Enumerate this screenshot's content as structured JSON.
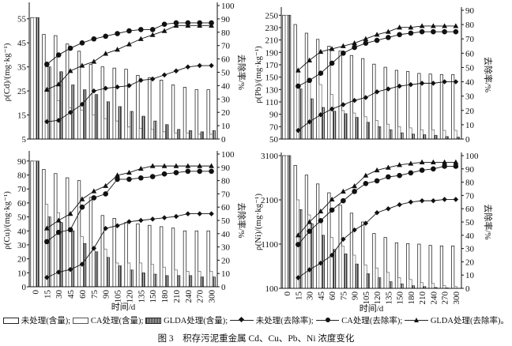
{
  "chart_data": [
    {
      "type": "bar+line",
      "metal": "Cd",
      "ylabel": "ρ(Cd)/(mg·kg⁻¹)",
      "y2label": "去除率/%",
      "xlabel": "",
      "categories": [
        "0",
        "15",
        "30",
        "45",
        "60",
        "75",
        "90",
        "105",
        "120",
        "135",
        "150",
        "180",
        "210",
        "240",
        "270",
        "300"
      ],
      "ylim": [
        5,
        60.5
      ],
      "yticks": [
        5,
        15,
        25,
        35,
        45,
        55
      ],
      "y2lim": [
        0,
        100
      ],
      "y2ticks": [
        0,
        10,
        20,
        30,
        40,
        50,
        60,
        70,
        80,
        90,
        100
      ],
      "bars": [
        {
          "name": "未处理(含量)",
          "values": [
            55.5,
            48.5,
            48,
            44.5,
            41.5,
            36,
            35,
            34.5,
            34,
            31.5,
            30.5,
            29.5,
            27.5,
            26.5,
            25.5,
            25.5
          ]
        },
        {
          "name": "CA处理(含量)",
          "values": [
            55.5,
            35,
            21,
            18,
            17,
            15,
            13.5,
            12.5,
            10,
            9.5,
            9,
            8,
            7.5,
            7.5,
            7,
            7
          ]
        },
        {
          "name": "GLDA处理(含量)",
          "values": [
            55.5,
            35,
            33,
            27.5,
            25.5,
            23.5,
            20.5,
            18.5,
            16.5,
            14.5,
            12.5,
            11,
            9,
            8.5,
            8,
            8.5
          ]
        }
      ],
      "lines": [
        {
          "name": "未处理(去除率)",
          "marker": "diamond",
          "values": [
            null,
            13,
            14,
            20,
            26,
            36,
            38,
            39,
            40,
            44,
            45,
            48,
            51,
            54,
            55,
            55
          ]
        },
        {
          "name": "CA处理(去除率)",
          "marker": "circle",
          "values": [
            null,
            56,
            63,
            68,
            72,
            75,
            77,
            79,
            81,
            82,
            82,
            86,
            87,
            87,
            87,
            87
          ]
        },
        {
          "name": "GLDA处理(去除率)",
          "marker": "triangle",
          "values": [
            null,
            37,
            41,
            51,
            55,
            58,
            64,
            67,
            71,
            75,
            78,
            81,
            85,
            85,
            85,
            85
          ]
        }
      ]
    },
    {
      "type": "bar+line",
      "metal": "Pb",
      "ylabel": "ρ(Pb)/(mg·kg⁻¹)",
      "y2label": "去除率/%",
      "xlabel": "",
      "categories": [
        "0",
        "15",
        "30",
        "45",
        "60",
        "75",
        "90",
        "105",
        "120",
        "135",
        "150",
        "180",
        "210",
        "240",
        "270",
        "300"
      ],
      "ylim": [
        50,
        258
      ],
      "yticks": [
        50,
        70,
        90,
        110,
        130,
        150,
        170,
        190,
        210,
        230,
        250
      ],
      "y2lim": [
        0,
        90
      ],
      "y2ticks": [
        0,
        10,
        20,
        30,
        40,
        50,
        60,
        70,
        80,
        90
      ],
      "bars": [
        {
          "name": "未处理(含量)",
          "values": [
            250,
            235,
            221,
            211,
            200,
            192,
            185,
            180,
            171,
            166,
            161,
            159,
            156,
            155,
            154,
            154
          ]
        },
        {
          "name": "CA处理(含量)",
          "values": [
            250,
            158,
            148,
            138,
            122,
            96,
            92,
            86,
            80,
            74,
            70,
            68,
            65,
            65,
            64,
            64
          ]
        },
        {
          "name": "GLDA处理(含量)",
          "values": [
            250,
            131,
            115,
            101,
            95,
            91,
            85,
            77,
            70,
            65,
            60,
            58,
            57,
            56,
            54,
            53
          ]
        }
      ],
      "lines": [
        {
          "name": "未处理(去除率)",
          "marker": "diamond",
          "values": [
            null,
            6,
            12,
            17,
            21,
            24,
            27,
            29,
            33,
            35,
            37,
            38,
            39,
            39,
            40,
            40
          ]
        },
        {
          "name": "CA处理(去除率)",
          "marker": "circle",
          "values": [
            null,
            37,
            41,
            46,
            53,
            60,
            64,
            67,
            69,
            71,
            73,
            74,
            75,
            75,
            75,
            75
          ]
        },
        {
          "name": "GLDA处理(去除率)",
          "marker": "triangle",
          "values": [
            null,
            48,
            55,
            61,
            63,
            65,
            67,
            70,
            73,
            75,
            78,
            78,
            79,
            79,
            79,
            79
          ]
        }
      ]
    },
    {
      "type": "bar+line",
      "metal": "Cu",
      "ylabel": "ρ(Cu)/(mg·kg⁻¹)",
      "y2label": "去除率/%",
      "xlabel": "时间/d",
      "categories": [
        "0",
        "15",
        "30",
        "45",
        "60",
        "75",
        "90",
        "105",
        "120",
        "135",
        "150",
        "180",
        "210",
        "240",
        "270",
        "300"
      ],
      "ylim": [
        0,
        95
      ],
      "yticks": [
        0,
        10,
        20,
        30,
        40,
        50,
        60,
        70,
        80,
        90
      ],
      "y2lim": [
        0,
        100
      ],
      "y2ticks": [
        0,
        10,
        20,
        30,
        40,
        50,
        60,
        70,
        80,
        90,
        100
      ],
      "bars": [
        {
          "name": "未处理(含量)",
          "values": [
            90,
            84,
            81,
            78,
            76,
            64,
            51,
            49,
            46,
            45,
            44,
            43,
            42,
            40,
            40,
            40
          ]
        },
        {
          "name": "CA处理(含量)",
          "values": [
            90,
            59,
            53,
            40,
            36,
            26,
            27,
            17,
            17,
            17,
            16,
            14,
            12,
            11,
            11,
            11
          ]
        },
        {
          "name": "GLDA处理(含量)",
          "values": [
            90,
            50,
            46,
            40,
            31,
            25,
            21,
            15,
            12,
            10,
            9,
            8,
            8,
            8,
            7,
            7
          ]
        }
      ],
      "lines": [
        {
          "name": "未处理(去除率)",
          "marker": "diamond",
          "values": [
            null,
            7,
            11,
            13,
            17,
            29,
            44,
            46,
            49,
            50,
            51,
            52,
            53,
            55,
            55,
            55
          ]
        },
        {
          "name": "CA处理(去除率)",
          "marker": "circle",
          "values": [
            null,
            34,
            41,
            43,
            60,
            67,
            70,
            81,
            81,
            82,
            83,
            85,
            86,
            87,
            87,
            87
          ]
        },
        {
          "name": "GLDA处理(去除率)",
          "marker": "triangle",
          "values": [
            null,
            44,
            50,
            55,
            66,
            72,
            76,
            84,
            86,
            89,
            91,
            91,
            91,
            91,
            91,
            91
          ]
        }
      ]
    },
    {
      "type": "bar+line",
      "metal": "Ni",
      "ylabel": "ρ(Ni)/(mg·kg⁻¹)",
      "y2label": "去除率/%",
      "xlabel": "时间/d",
      "categories": [
        "0",
        "15",
        "30",
        "45",
        "60",
        "75",
        "90",
        "105",
        "120",
        "135",
        "150",
        "180",
        "210",
        "240",
        "270",
        "300"
      ],
      "ylim": [
        100,
        3100
      ],
      "yticks": [
        100,
        1100,
        2100,
        3100
      ],
      "y2lim": [
        0,
        100
      ],
      "y2ticks": [
        0,
        10,
        20,
        30,
        40,
        50,
        60,
        70,
        80,
        90,
        100
      ],
      "bars": [
        {
          "name": "未处理(含量)",
          "values": [
            3100,
            2880,
            2660,
            2460,
            2260,
            1980,
            1800,
            1600,
            1340,
            1250,
            1130,
            1110,
            1100,
            1070,
            1060,
            1060
          ]
        },
        {
          "name": "CA处理(含量)",
          "values": [
            3100,
            2100,
            1760,
            1620,
            1250,
            1050,
            850,
            630,
            560,
            460,
            340,
            300,
            230,
            210,
            160,
            140
          ]
        },
        {
          "name": "GLDA处理(含量)",
          "values": [
            3100,
            1880,
            1560,
            1300,
            980,
            880,
            650,
            430,
            340,
            250,
            200,
            160,
            140,
            120,
            110,
            100
          ]
        }
      ],
      "lines": [
        {
          "name": "未处理(去除率)",
          "marker": "diamond",
          "values": [
            null,
            8,
            14,
            19,
            25,
            37,
            44,
            49,
            57,
            60,
            63,
            65,
            66,
            66,
            67,
            67
          ]
        },
        {
          "name": "CA处理(去除率)",
          "marker": "circle",
          "values": [
            null,
            33,
            43,
            51,
            59,
            66,
            73,
            79,
            81,
            84,
            85,
            87,
            89,
            90,
            92,
            92
          ]
        },
        {
          "name": "GLDA处理(去除率)",
          "marker": "triangle",
          "values": [
            null,
            40,
            50,
            58,
            67,
            73,
            77,
            85,
            89,
            91,
            93,
            94,
            95,
            95,
            95,
            95
          ]
        }
      ]
    }
  ],
  "legend": {
    "untreated_content": "未处理(含量);",
    "ca_content": "CA处理(含量);",
    "glda_content": "GLDA处理(含量);",
    "untreated_rate": "未处理(去除率);",
    "ca_rate": "CA处理(去除率);",
    "glda_rate": "GLDA处理(去除率)。"
  },
  "caption": "图 3　积存污泥重金属 Cd、Cu、Pb、Ni 浓度变化"
}
